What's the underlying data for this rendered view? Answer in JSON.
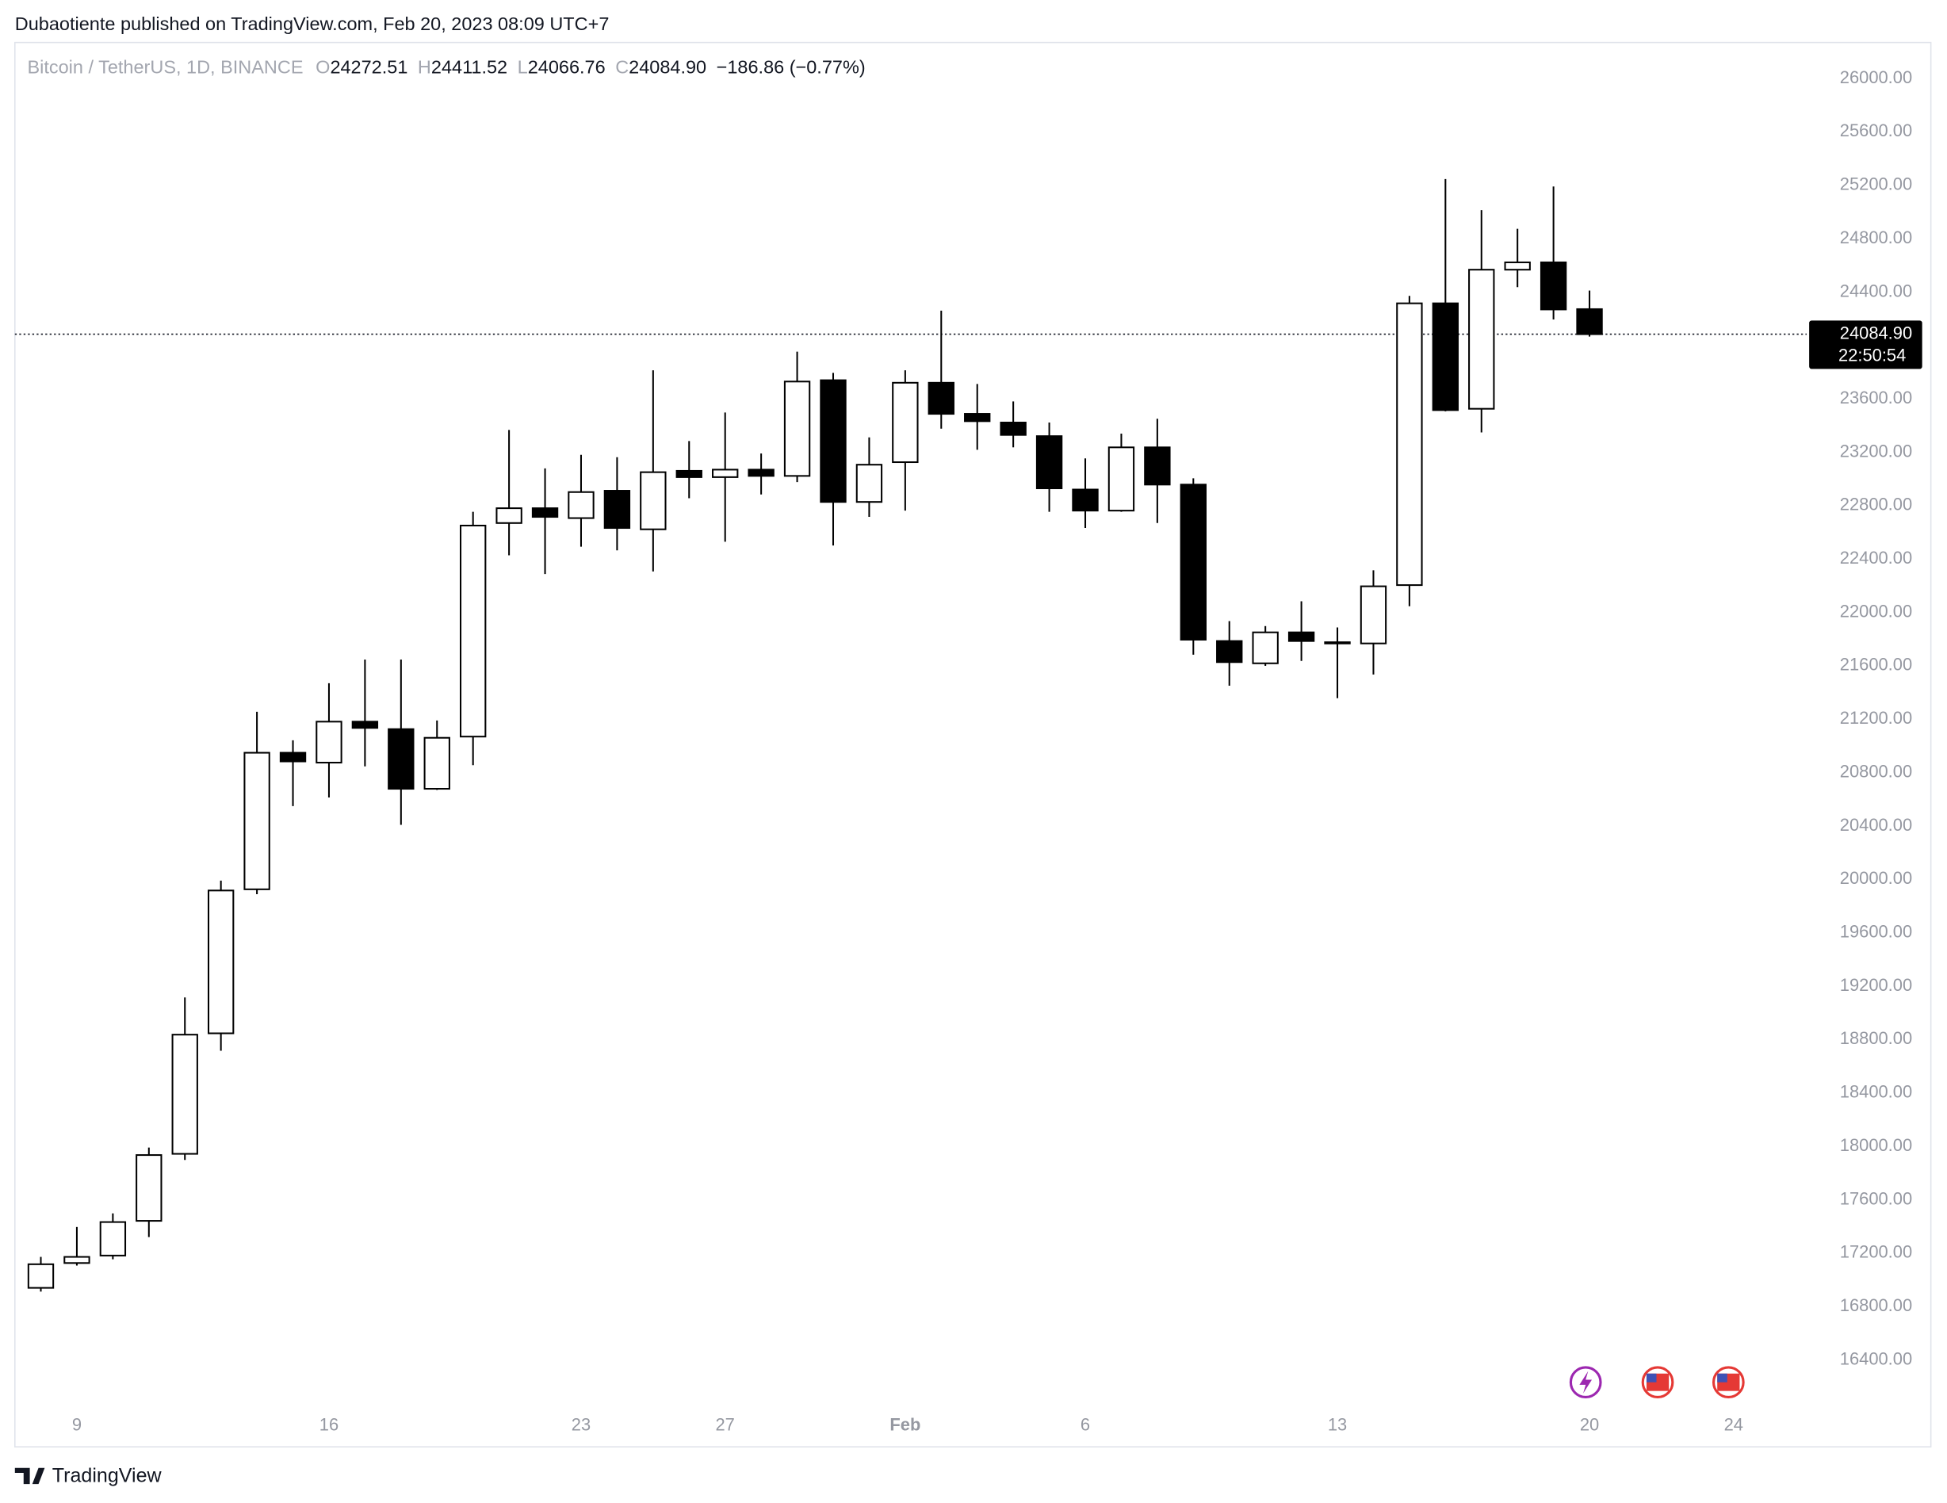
{
  "header": {
    "text": "Dubaotiente published on TradingView.com, Feb 20, 2023 08:09 UTC+7"
  },
  "chart_data": {
    "type": "candlestick",
    "title": "Bitcoin / TetherUS, 1D, BINANCE",
    "legend": {
      "o": "O",
      "open": "24272.51",
      "h": "H",
      "high": "24411.52",
      "l": "L",
      "low": "24066.76",
      "c": "C",
      "close": "24084.90",
      "change": "−186.86 (−0.77%)"
    },
    "open": [
      16940,
      17126,
      17182,
      17442,
      17944,
      18847,
      19926,
      20949,
      20875,
      21182,
      21126,
      20679,
      21070,
      22670,
      22781,
      22707,
      22912,
      22623,
      23061,
      23014,
      23070,
      23023,
      23740,
      22828,
      23126,
      23721,
      23488,
      23423,
      23321,
      22921,
      22763,
      23237,
      22958,
      21786,
      21619,
      21851,
      21777,
      21768,
      22205,
      24316,
      23526,
      24568,
      24623,
      24272.51
    ],
    "high": [
      17172,
      17396,
      17498,
      17991,
      19116,
      19991,
      21256,
      21042,
      21470,
      21647,
      21647,
      21191,
      22754,
      23367,
      23079,
      23181,
      23163,
      23814,
      23284,
      23498,
      23191,
      23954,
      23795,
      23312,
      23814,
      24261,
      23712,
      23581,
      23423,
      23154,
      23340,
      23451,
      23005,
      21935,
      21898,
      22084,
      21888,
      22316,
      24372,
      25247,
      25014,
      24874,
      25191,
      24411.52
    ],
    "low": [
      16912,
      17107,
      17154,
      17321,
      17898,
      18716,
      19889,
      20549,
      20614,
      20847,
      20409,
      20670,
      20856,
      22428,
      22288,
      22493,
      22465,
      22307,
      22856,
      22530,
      22884,
      22977,
      22502,
      22716,
      22763,
      23377,
      23219,
      23237,
      22754,
      22633,
      22754,
      22670,
      21684,
      21451,
      21600,
      21637,
      21358,
      21535,
      22047,
      23507,
      23349,
      24437,
      24195,
      24066.76
    ],
    "close": [
      17117,
      17172,
      17433,
      17935,
      18837,
      19917,
      20949,
      20884,
      21182,
      21135,
      20679,
      21061,
      22651,
      22781,
      22716,
      22902,
      22633,
      23051,
      23014,
      23070,
      23023,
      23730,
      22828,
      23107,
      23721,
      23488,
      23433,
      23330,
      22930,
      22763,
      23237,
      22958,
      21796,
      21628,
      21851,
      21786,
      21768,
      22196,
      24316,
      23516,
      24568,
      24623,
      24270,
      24084.9
    ],
    "colors": {
      "up": "#ffffff",
      "down": "#000000"
    },
    "xlim": [
      -0.72,
      49.03
    ],
    "xticks": [
      {
        "value": 1,
        "label": "9"
      },
      {
        "value": 8,
        "label": "16"
      },
      {
        "value": 15,
        "label": "23"
      },
      {
        "value": 19,
        "label": "27"
      },
      {
        "value": 24,
        "label": "Feb"
      },
      {
        "value": 29,
        "label": "6"
      },
      {
        "value": 36,
        "label": "13"
      },
      {
        "value": 43,
        "label": "20"
      },
      {
        "value": 47,
        "label": "24"
      }
    ],
    "ylim": [
      15749,
      26270
    ],
    "yticks": [
      {
        "value": 16400,
        "label": "16400.00"
      },
      {
        "value": 16800,
        "label": "16800.00"
      },
      {
        "value": 17200,
        "label": "17200.00"
      },
      {
        "value": 17600,
        "label": "17600.00"
      },
      {
        "value": 18000,
        "label": "18000.00"
      },
      {
        "value": 18400,
        "label": "18400.00"
      },
      {
        "value": 18800,
        "label": "18800.00"
      },
      {
        "value": 19200,
        "label": "19200.00"
      },
      {
        "value": 19600,
        "label": "19600.00"
      },
      {
        "value": 20000,
        "label": "20000.00"
      },
      {
        "value": 20400,
        "label": "20400.00"
      },
      {
        "value": 20800,
        "label": "20800.00"
      },
      {
        "value": 21200,
        "label": "21200.00"
      },
      {
        "value": 21600,
        "label": "21600.00"
      },
      {
        "value": 22000,
        "label": "22000.00"
      },
      {
        "value": 22400,
        "label": "22400.00"
      },
      {
        "value": 22800,
        "label": "22800.00"
      },
      {
        "value": 23200,
        "label": "23200.00"
      },
      {
        "value": 23600,
        "label": "23600.00"
      },
      {
        "value": 24000,
        "label": "24000.00"
      },
      {
        "value": 24400,
        "label": "24400.00"
      },
      {
        "value": 24800,
        "label": "24800.00"
      },
      {
        "value": 25200,
        "label": "25200.00"
      },
      {
        "value": 25600,
        "label": "25600.00"
      },
      {
        "value": 26000,
        "label": "26000.00"
      }
    ],
    "last_price": {
      "value": 24084.9,
      "label": "24084.90"
    },
    "countdown": "22:50:54"
  },
  "footer": {
    "brand": "TradingView"
  }
}
